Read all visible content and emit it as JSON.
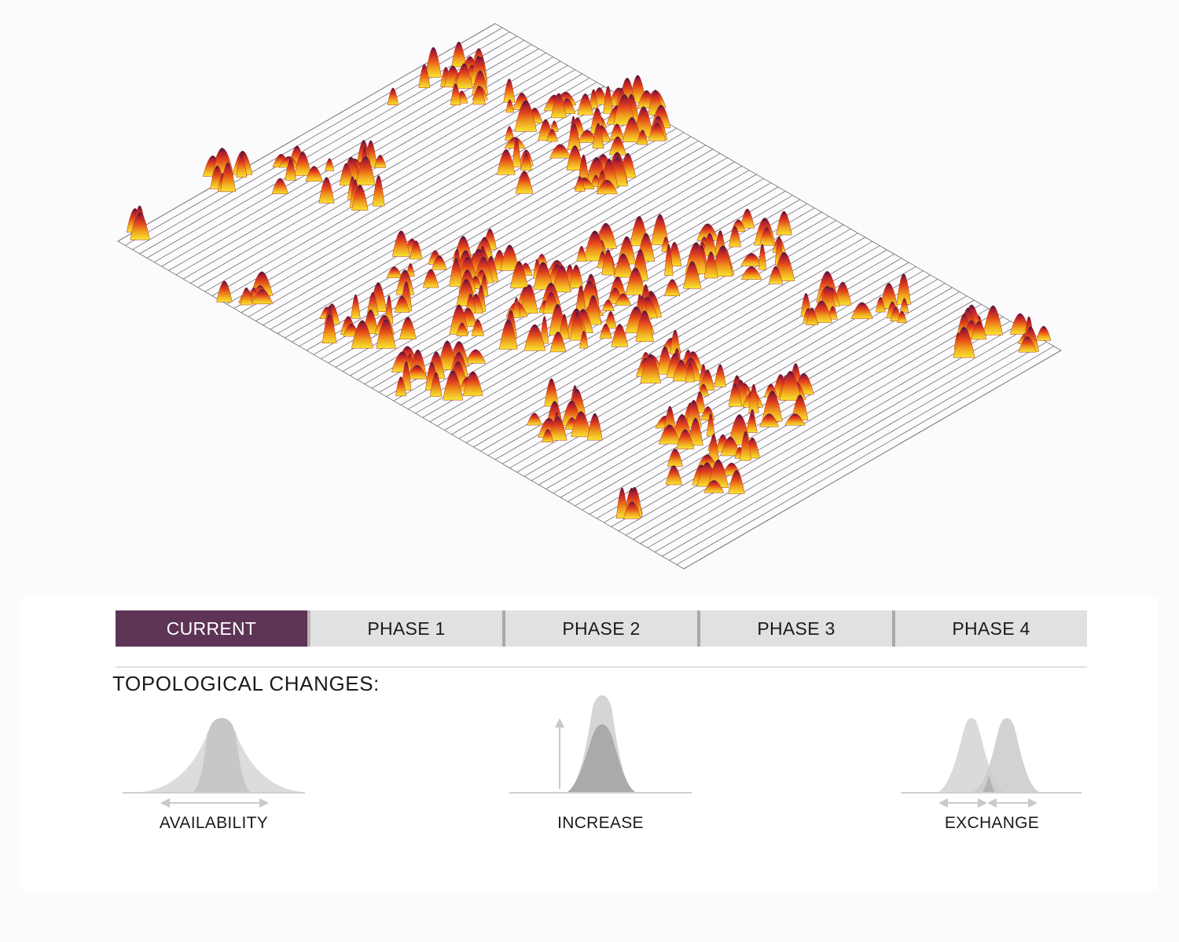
{
  "tabs": [
    {
      "label": "CURRENT",
      "active": true
    },
    {
      "label": "PHASE 1",
      "active": false
    },
    {
      "label": "PHASE 2",
      "active": false
    },
    {
      "label": "PHASE 3",
      "active": false
    },
    {
      "label": "PHASE 4",
      "active": false
    }
  ],
  "colors": {
    "accent": "#5e3456",
    "tab_inactive": "#e1e1e1",
    "heat_low": "#f3da1e",
    "heat_mid": "#e4491a",
    "heat_high": "#2c1b47"
  },
  "section": {
    "heading": "TOPOLOGICAL CHANGES:"
  },
  "legend": {
    "availability": {
      "label": "AVAILABILITY",
      "icon": "availability-curve-icon"
    },
    "increase": {
      "label": "INCREASE",
      "icon": "increase-curve-icon"
    },
    "exchange": {
      "label": "EXCHANGE",
      "icon": "exchange-curve-icon"
    }
  }
}
